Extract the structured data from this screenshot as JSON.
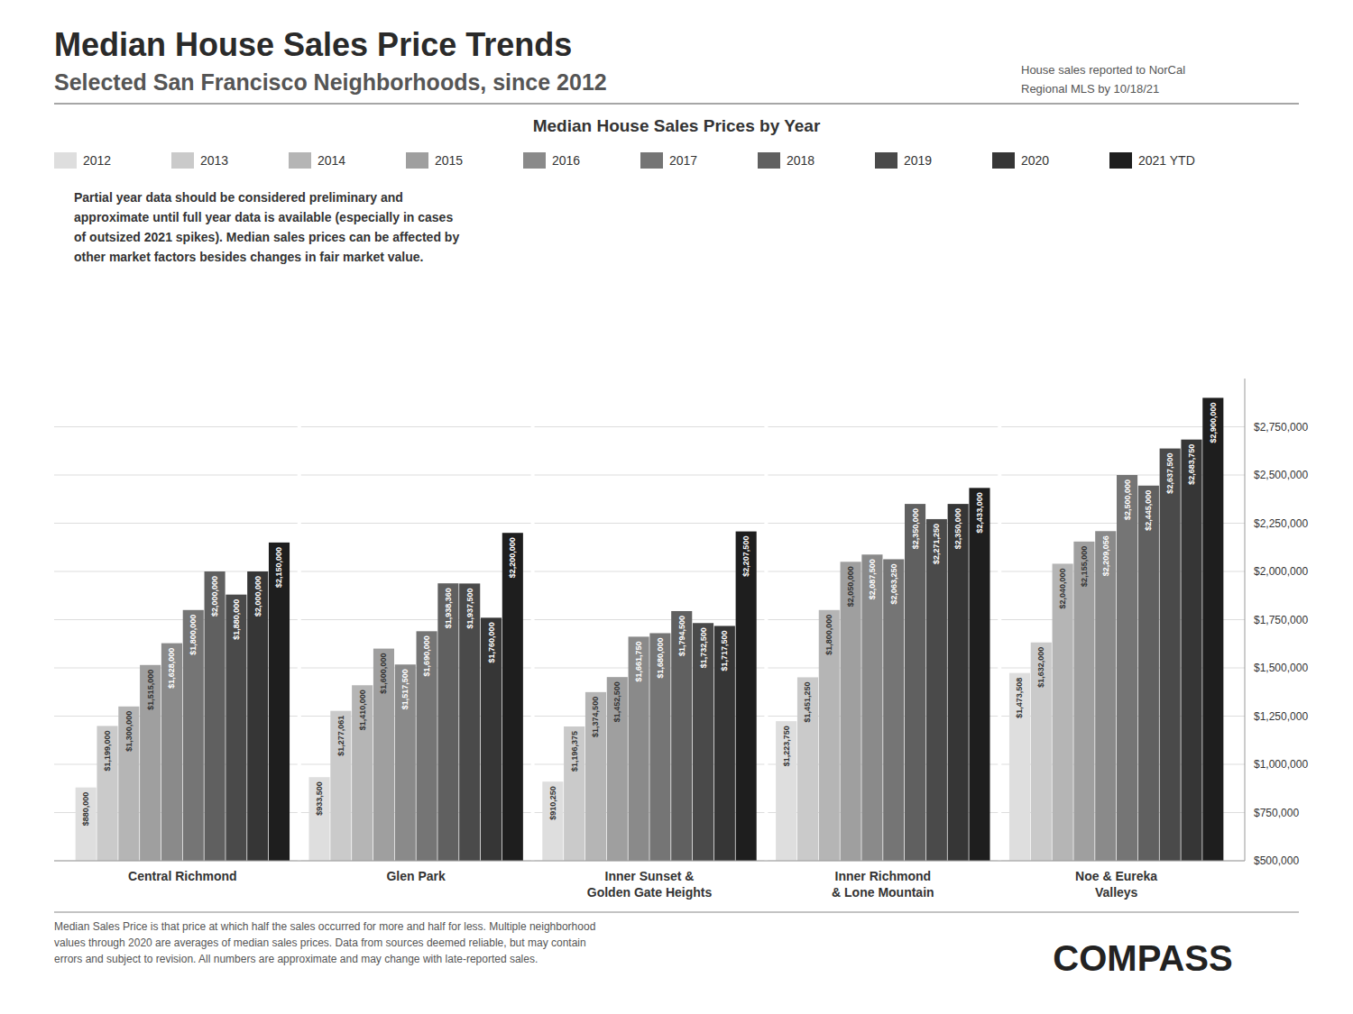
{
  "chart_data": {
    "type": "bar",
    "title": "Median House Sales Price Trends",
    "subtitle": "Selected San Francisco Neighborhoods, since 2012",
    "note": "House sales reported to NorCal\nRegional MLS by 10/18/21",
    "chart_title": "Median House Sales Prices by Year",
    "annotation": "Partial year data should be considered preliminary and\napproximate until full year data is available (especially in cases\nof outsized 2021 spikes). Median sales prices can be affected by\nother market factors besides changes in fair market value.",
    "footnote": "Median Sales Price is that price at which half the sales occurred for more and half for less. Multiple neighborhood\nvalues through 2020 are averages of median sales prices. Data from sources deemed reliable, but may contain\nerrors and subject to revision.  All numbers are approximate and may change with late-reported sales.",
    "logo": "COMPASS",
    "categories": [
      "Central Richmond",
      "Glen Park",
      "Inner Sunset &\nGolden Gate Heights",
      "Inner Richmond\n& Lone Mountain",
      "Noe & Eureka\nValleys"
    ],
    "series": [
      {
        "name": "2012",
        "color": "#dedede",
        "values": [
          880000,
          933500,
          910250,
          1223750,
          1473508
        ],
        "value_labels": [
          "$880,000",
          "$933,500",
          "$910,250",
          "$1,223,750",
          "$1,473,508"
        ]
      },
      {
        "name": "2013",
        "color": "#cacaca",
        "values": [
          1199000,
          1277061,
          1196375,
          1451250,
          1632000
        ],
        "value_labels": [
          "$1,199,000",
          "$1,277,061",
          "$1,196,375",
          "$1,451,250",
          "$1,632,000"
        ]
      },
      {
        "name": "2014",
        "color": "#b5b5b5",
        "values": [
          1300000,
          1410000,
          1374500,
          1800000,
          2040000
        ],
        "value_labels": [
          "$1,300,000",
          "$1,410,000",
          "$1,374,500",
          "$1,800,000",
          "$2,040,000"
        ]
      },
      {
        "name": "2015",
        "color": "#9f9f9f",
        "values": [
          1515000,
          1600000,
          1452500,
          2050000,
          2155000
        ],
        "value_labels": [
          "$1,515,000",
          "$1,600,000",
          "$1,452,500",
          "$2,050,000",
          "$2,155,000"
        ]
      },
      {
        "name": "2016",
        "color": "#8a8a8a",
        "values": [
          1628000,
          1517500,
          1661750,
          2087500,
          2209056
        ],
        "value_labels": [
          "$1,628,000",
          "$1,517,500",
          "$1,661,750",
          "$2,087,500",
          "$2,209,056"
        ]
      },
      {
        "name": "2017",
        "color": "#757575",
        "values": [
          1800000,
          1690000,
          1680000,
          2063250,
          2500000
        ],
        "value_labels": [
          "$1,800,000",
          "$1,690,000",
          "$1,680,000",
          "$2,063,250",
          "$2,500,000"
        ]
      },
      {
        "name": "2018",
        "color": "#606060",
        "values": [
          2000000,
          1938360,
          1794500,
          2350000,
          2445000
        ],
        "value_labels": [
          "$2,000,000",
          "$1,938,360",
          "$1,794,500",
          "$2,350,000",
          "$2,445,000"
        ]
      },
      {
        "name": "2019",
        "color": "#4a4a4a",
        "values": [
          1880000,
          1937500,
          1732500,
          2271250,
          2637500
        ],
        "value_labels": [
          "$1,880,000",
          "$1,937,500",
          "$1,732,500",
          "$2,271,250",
          "$2,637,500"
        ]
      },
      {
        "name": "2020",
        "color": "#363636",
        "values": [
          2000000,
          1760000,
          1717500,
          2350000,
          2683750
        ],
        "value_labels": [
          "$2,000,000",
          "$1,760,000",
          "$1,717,500",
          "$2,350,000",
          "$2,683,750"
        ]
      },
      {
        "name": "2021 YTD",
        "color": "#1e1e1e",
        "values": [
          2150000,
          2200000,
          2207500,
          2433000,
          2900000
        ],
        "value_labels": [
          "$2,150,000",
          "$2,200,000",
          "$2,207,500",
          "$2,433,000",
          "$2,900,000"
        ]
      }
    ],
    "ylim": [
      500000,
      3000000
    ],
    "yticks": [
      {
        "value": 500000,
        "label": "$500,000"
      },
      {
        "value": 750000,
        "label": "$750,000"
      },
      {
        "value": 1000000,
        "label": "$1,000,000"
      },
      {
        "value": 1250000,
        "label": "$1,250,000"
      },
      {
        "value": 1500000,
        "label": "$1,500,000"
      },
      {
        "value": 1750000,
        "label": "$1,750,000"
      },
      {
        "value": 2000000,
        "label": "$2,000,000"
      },
      {
        "value": 2250000,
        "label": "$2,250,000"
      },
      {
        "value": 2500000,
        "label": "$2,500,000"
      },
      {
        "value": 2750000,
        "label": "$2,750,000"
      }
    ],
    "grid": true,
    "data_labels": true,
    "legend": "upper left"
  }
}
